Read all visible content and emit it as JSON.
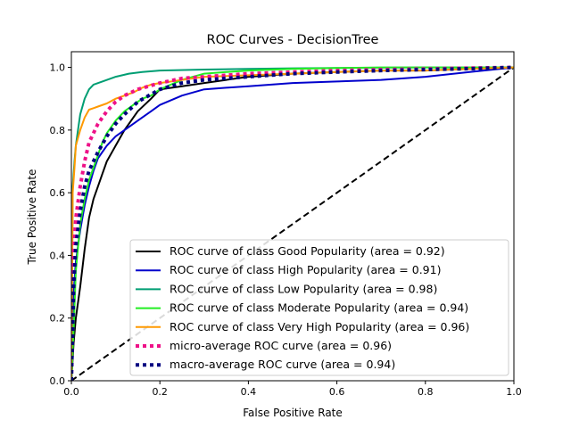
{
  "chart_data": {
    "type": "line",
    "title": "ROC Curves - DecisionTree",
    "xlabel": "False Positive Rate",
    "ylabel": "True Positive Rate",
    "xlim": [
      0.0,
      1.0
    ],
    "ylim": [
      0.0,
      1.05
    ],
    "x_ticks": [
      "0.0",
      "0.2",
      "0.4",
      "0.6",
      "0.8",
      "1.0"
    ],
    "y_ticks": [
      "0.0",
      "0.2",
      "0.4",
      "0.6",
      "0.8",
      "1.0"
    ],
    "grid": false,
    "legend_position": "lower-right",
    "series": [
      {
        "name": "ROC curve of class Good Popularity (area = 0.92)",
        "color": "#000000",
        "style": "solid",
        "x": [
          0.0,
          0.005,
          0.01,
          0.02,
          0.03,
          0.04,
          0.05,
          0.06,
          0.07,
          0.08,
          0.1,
          0.12,
          0.15,
          0.18,
          0.2,
          0.25,
          0.3,
          0.35,
          0.4,
          0.5,
          0.6,
          0.7,
          0.8,
          0.9,
          1.0
        ],
        "y": [
          0.0,
          0.12,
          0.2,
          0.3,
          0.42,
          0.52,
          0.58,
          0.62,
          0.66,
          0.7,
          0.75,
          0.8,
          0.86,
          0.9,
          0.93,
          0.94,
          0.95,
          0.96,
          0.97,
          0.98,
          0.985,
          0.99,
          0.99,
          0.995,
          1.0
        ]
      },
      {
        "name": "ROC curve of class High Popularity (area = 0.91)",
        "color": "#0000cc",
        "style": "solid",
        "x": [
          0.0,
          0.005,
          0.01,
          0.02,
          0.03,
          0.04,
          0.05,
          0.06,
          0.08,
          0.1,
          0.12,
          0.15,
          0.18,
          0.2,
          0.25,
          0.3,
          0.35,
          0.4,
          0.5,
          0.6,
          0.7,
          0.8,
          0.9,
          1.0
        ],
        "y": [
          0.0,
          0.28,
          0.38,
          0.48,
          0.56,
          0.62,
          0.67,
          0.71,
          0.75,
          0.78,
          0.8,
          0.83,
          0.86,
          0.88,
          0.91,
          0.93,
          0.935,
          0.94,
          0.95,
          0.955,
          0.96,
          0.97,
          0.985,
          1.0
        ]
      },
      {
        "name": "ROC curve of class Low Popularity (area = 0.98)",
        "color": "#009e73",
        "style": "solid",
        "x": [
          0.0,
          0.003,
          0.007,
          0.01,
          0.015,
          0.02,
          0.03,
          0.04,
          0.05,
          0.07,
          0.1,
          0.13,
          0.16,
          0.2,
          0.3,
          0.4,
          0.5,
          0.6,
          0.7,
          0.8,
          0.9,
          1.0
        ],
        "y": [
          0.0,
          0.62,
          0.7,
          0.75,
          0.8,
          0.85,
          0.9,
          0.93,
          0.945,
          0.955,
          0.97,
          0.98,
          0.985,
          0.99,
          0.993,
          0.995,
          0.997,
          0.998,
          0.999,
          1.0,
          1.0,
          1.0
        ]
      },
      {
        "name": "ROC curve of class Moderate Popularity (area = 0.94)",
        "color": "#22ee22",
        "style": "solid",
        "x": [
          0.0,
          0.005,
          0.01,
          0.02,
          0.03,
          0.04,
          0.05,
          0.06,
          0.07,
          0.08,
          0.1,
          0.12,
          0.14,
          0.16,
          0.18,
          0.2,
          0.25,
          0.3,
          0.35,
          0.4,
          0.5,
          0.6,
          0.7,
          0.8,
          0.9,
          1.0
        ],
        "y": [
          0.0,
          0.16,
          0.35,
          0.5,
          0.58,
          0.64,
          0.68,
          0.72,
          0.76,
          0.79,
          0.83,
          0.86,
          0.88,
          0.9,
          0.91,
          0.93,
          0.96,
          0.98,
          0.985,
          0.99,
          0.995,
          0.998,
          1.0,
          1.0,
          1.0,
          1.0
        ]
      },
      {
        "name": "ROC curve of class Very High Popularity (area = 0.96)",
        "color": "#ff9900",
        "style": "solid",
        "x": [
          0.0,
          0.003,
          0.007,
          0.01,
          0.02,
          0.03,
          0.04,
          0.05,
          0.06,
          0.08,
          0.1,
          0.12,
          0.14,
          0.16,
          0.18,
          0.2,
          0.25,
          0.3,
          0.4,
          0.5,
          0.6,
          0.7,
          0.8,
          0.9,
          1.0
        ],
        "y": [
          0.0,
          0.6,
          0.68,
          0.75,
          0.8,
          0.84,
          0.865,
          0.87,
          0.875,
          0.885,
          0.9,
          0.91,
          0.92,
          0.935,
          0.945,
          0.95,
          0.96,
          0.97,
          0.975,
          0.98,
          0.985,
          0.99,
          0.99,
          0.995,
          1.0
        ]
      },
      {
        "name": "micro-average ROC curve (area = 0.96)",
        "color": "#ee1188",
        "style": "dotted",
        "x": [
          0.0,
          0.005,
          0.01,
          0.02,
          0.03,
          0.04,
          0.06,
          0.08,
          0.1,
          0.12,
          0.15,
          0.2,
          0.25,
          0.3,
          0.4,
          0.5,
          0.6,
          0.7,
          0.8,
          0.9,
          1.0
        ],
        "y": [
          0.0,
          0.4,
          0.52,
          0.62,
          0.7,
          0.76,
          0.82,
          0.86,
          0.89,
          0.91,
          0.93,
          0.95,
          0.965,
          0.97,
          0.98,
          0.985,
          0.99,
          0.993,
          0.995,
          0.998,
          1.0
        ]
      },
      {
        "name": "macro-average ROC curve (area = 0.94)",
        "color": "#000080",
        "style": "dotted",
        "x": [
          0.0,
          0.005,
          0.01,
          0.02,
          0.03,
          0.04,
          0.05,
          0.06,
          0.08,
          0.1,
          0.12,
          0.15,
          0.2,
          0.25,
          0.3,
          0.4,
          0.5,
          0.6,
          0.7,
          0.8,
          0.9,
          1.0
        ],
        "y": [
          0.0,
          0.3,
          0.43,
          0.54,
          0.62,
          0.67,
          0.7,
          0.73,
          0.78,
          0.82,
          0.85,
          0.89,
          0.93,
          0.95,
          0.96,
          0.97,
          0.98,
          0.985,
          0.99,
          0.993,
          0.996,
          1.0
        ]
      }
    ],
    "reference_line": {
      "x": [
        0.0,
        1.0
      ],
      "y": [
        0.0,
        1.0
      ],
      "color": "#000000",
      "style": "dashed"
    }
  }
}
